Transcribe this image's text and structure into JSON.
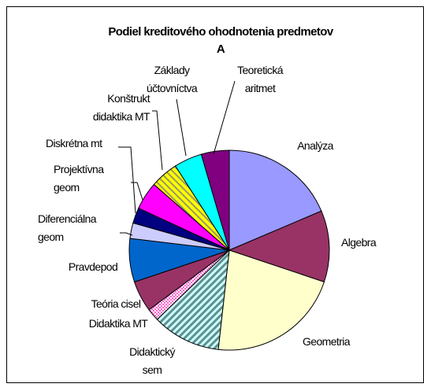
{
  "chart_data": {
    "type": "pie",
    "title": "Podiel kreditového ohodnotenia predmetov\nA",
    "categories": [
      "Analýza",
      "Algebra",
      "Geometria",
      "Didaktický\nsem",
      "Didaktika MT",
      "Teória cisel",
      "Pravdepod",
      "Diferenciálna\ngeom",
      "Diskrétna mt",
      "Projektívna\ngeom",
      "Konštrukt\ndidaktika MT",
      "Základy\núčtovníctva",
      "Teoretická\naritmet"
    ],
    "values": [
      18.5,
      11.5,
      21.5,
      11,
      2,
      5,
      7,
      2.5,
      2.5,
      4.5,
      4.5,
      4.5,
      4.5
    ],
    "colors": [
      "#9999ff",
      "#993366",
      "#ffffcc",
      "url(#hatch-teal)",
      "url(#check-pink)",
      "#993366",
      "#0066cc",
      "#ccccff",
      "#000080",
      "#ff00ff",
      "url(#hatch-yellow)",
      "#00ffff",
      "#800080"
    ]
  }
}
